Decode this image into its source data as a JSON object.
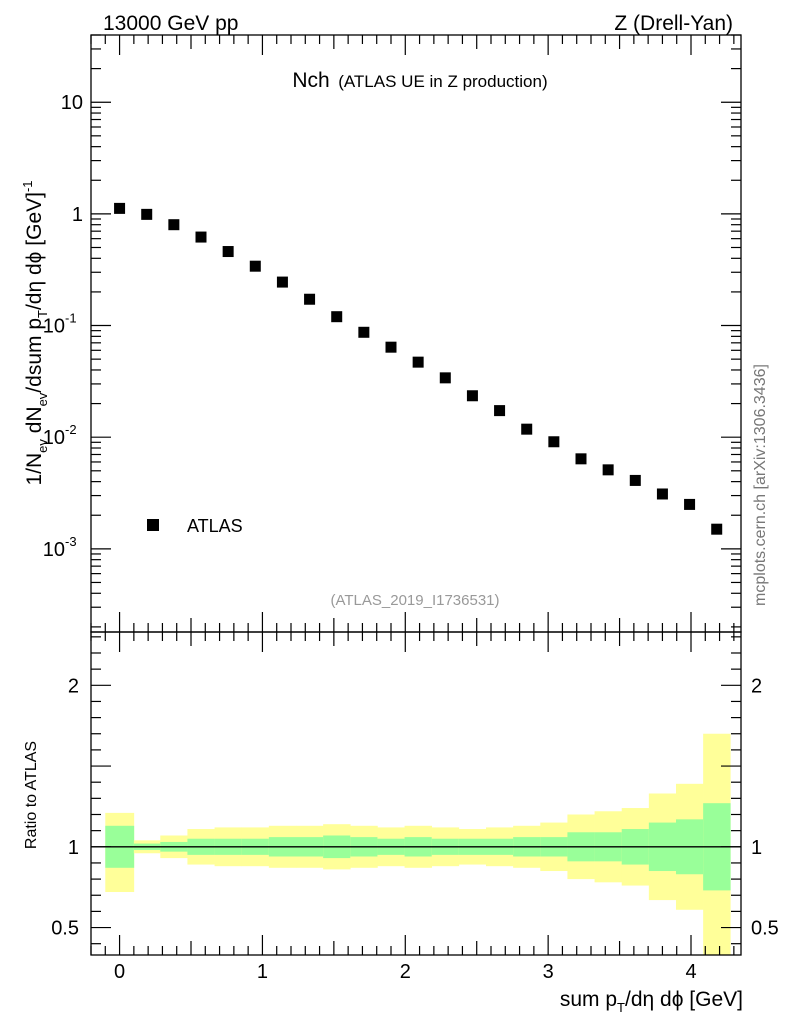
{
  "header": {
    "left": "13000 GeV pp",
    "right": "Z (Drell-Yan)"
  },
  "side_label": "mcplots.cern.ch [arXiv:1306.3436]",
  "chart_data": [
    {
      "type": "scatter",
      "title_main": "Nch",
      "title_sub": "(ATLAS UE in Z production)",
      "watermark": "(ATLAS_2019_I1736531)",
      "ylabel": {
        "p1": "1/N",
        "s1": "ev",
        "p2": " dN",
        "s2": "ev",
        "p3": "/dsum p",
        "s3": "T",
        "p4": "/dη dϕ  [GeV]",
        "sup": "-1"
      },
      "y_scale": "log",
      "ylim": [
        0.00018,
        40
      ],
      "xlim": [
        -0.2,
        4.35
      ],
      "y_ticks": [
        {
          "value": 10,
          "label": "10"
        },
        {
          "value": 1,
          "label": "1"
        },
        {
          "value": 0.1,
          "base": "10",
          "exp": "-1"
        },
        {
          "value": 0.01,
          "base": "10",
          "exp": "-2"
        },
        {
          "value": 0.001,
          "base": "10",
          "exp": "-3"
        }
      ],
      "legend_position": "bottom-left",
      "series": [
        {
          "name": "ATLAS",
          "marker": "square",
          "color": "#000000",
          "x": [
            0,
            0.19,
            0.38,
            0.57,
            0.76,
            0.95,
            1.14,
            1.33,
            1.52,
            1.71,
            1.9,
            2.09,
            2.28,
            2.47,
            2.66,
            2.85,
            3.04,
            3.23,
            3.42,
            3.61,
            3.8,
            3.99,
            4.18
          ],
          "y": [
            1.12,
            0.99,
            0.8,
            0.62,
            0.46,
            0.34,
            0.245,
            0.172,
            0.12,
            0.087,
            0.064,
            0.047,
            0.034,
            0.0235,
            0.0173,
            0.0118,
            0.0091,
            0.0064,
            0.0051,
            0.0041,
            0.0031,
            0.0025,
            0.0015
          ]
        }
      ]
    },
    {
      "type": "area",
      "ylabel": "Ratio to ATLAS",
      "xlabel": {
        "p1": "sum p",
        "s1": "T",
        "p2": "/dη dϕ [GeV]"
      },
      "xlim": [
        -0.2,
        4.35
      ],
      "ylim": [
        0.33,
        2.33
      ],
      "x_ticks": [
        0,
        1,
        2,
        3,
        4
      ],
      "y_ticks": [
        {
          "value": 2,
          "label": "2"
        },
        {
          "value": 1,
          "label": "1"
        },
        {
          "value": 0.5,
          "label": "0.5"
        }
      ],
      "reference_line": 1,
      "bands": {
        "bin_edges": [
          -0.1,
          0.1,
          0.285,
          0.475,
          0.665,
          0.855,
          1.045,
          1.235,
          1.425,
          1.615,
          1.805,
          1.995,
          2.185,
          2.375,
          2.565,
          2.755,
          2.945,
          3.135,
          3.325,
          3.515,
          3.705,
          3.895,
          4.085,
          4.275
        ],
        "outer_color": "#ffff99",
        "inner_color": "#99ff99",
        "outer_low": [
          0.72,
          0.96,
          0.93,
          0.89,
          0.88,
          0.88,
          0.87,
          0.87,
          0.86,
          0.87,
          0.88,
          0.87,
          0.88,
          0.89,
          0.88,
          0.87,
          0.85,
          0.8,
          0.78,
          0.76,
          0.67,
          0.61,
          0.33
        ],
        "outer_high": [
          1.21,
          1.04,
          1.07,
          1.11,
          1.12,
          1.12,
          1.13,
          1.13,
          1.14,
          1.13,
          1.12,
          1.13,
          1.12,
          1.11,
          1.12,
          1.13,
          1.15,
          1.2,
          1.22,
          1.24,
          1.33,
          1.39,
          1.7
        ],
        "inner_low": [
          0.87,
          0.98,
          0.97,
          0.95,
          0.95,
          0.95,
          0.94,
          0.94,
          0.93,
          0.94,
          0.95,
          0.94,
          0.95,
          0.95,
          0.95,
          0.94,
          0.94,
          0.91,
          0.91,
          0.89,
          0.85,
          0.83,
          0.73
        ],
        "inner_high": [
          1.13,
          1.02,
          1.03,
          1.05,
          1.05,
          1.05,
          1.06,
          1.06,
          1.07,
          1.06,
          1.05,
          1.06,
          1.05,
          1.05,
          1.05,
          1.06,
          1.06,
          1.09,
          1.09,
          1.11,
          1.15,
          1.17,
          1.27
        ]
      }
    }
  ]
}
